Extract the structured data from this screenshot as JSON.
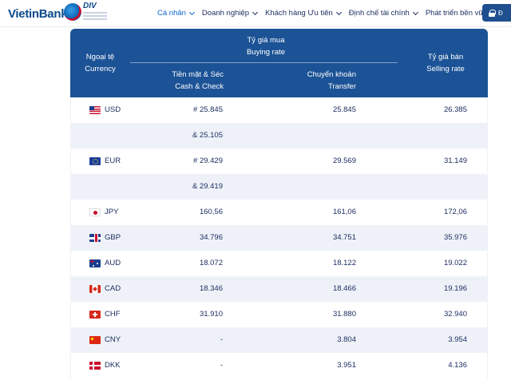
{
  "header": {
    "logo_text": "VietinBank",
    "badge_text": "DIV",
    "nav": [
      {
        "label": "Cá nhân",
        "active": true
      },
      {
        "label": "Doanh nghiệp",
        "active": false
      },
      {
        "label": "Khách hàng Ưu tiên",
        "active": false
      },
      {
        "label": "Định chế tài chính",
        "active": false
      },
      {
        "label": "Phát triển bền vững",
        "active": false
      }
    ],
    "login_label": "Đ"
  },
  "table": {
    "headers": {
      "currency_vi": "Ngoại tệ",
      "currency_en": "Currency",
      "buying_vi": "Tỷ giá mua",
      "buying_en": "Buying rate",
      "cash_vi": "Tiền mặt & Séc",
      "cash_en": "Cash & Check",
      "transfer_vi": "Chuyển khoản",
      "transfer_en": "Transfer",
      "selling_vi": "Tỷ giá bán",
      "selling_en": "Selling rate"
    },
    "rows": [
      {
        "flag": "flag-us",
        "code": "USD",
        "cash": "# 25.845",
        "transfer": "25.845",
        "selling": "26.385"
      },
      {
        "flag": "",
        "code": "",
        "cash": "& 25.105",
        "transfer": "",
        "selling": ""
      },
      {
        "flag": "flag-eu",
        "code": "EUR",
        "cash": "# 29.429",
        "transfer": "29.569",
        "selling": "31.149"
      },
      {
        "flag": "",
        "code": "",
        "cash": "& 29.419",
        "transfer": "",
        "selling": ""
      },
      {
        "flag": "flag-jp",
        "code": "JPY",
        "cash": "160,56",
        "transfer": "161,06",
        "selling": "172,06"
      },
      {
        "flag": "flag-gb",
        "code": "GBP",
        "cash": "34.796",
        "transfer": "34.751",
        "selling": "35.976"
      },
      {
        "flag": "flag-au",
        "code": "AUD",
        "cash": "18.072",
        "transfer": "18.122",
        "selling": "19.022"
      },
      {
        "flag": "flag-ca",
        "code": "CAD",
        "cash": "18.346",
        "transfer": "18.466",
        "selling": "19.196"
      },
      {
        "flag": "flag-ch",
        "code": "CHF",
        "cash": "31.910",
        "transfer": "31.880",
        "selling": "32.940"
      },
      {
        "flag": "flag-cn",
        "code": "CNY",
        "cash": "-",
        "transfer": "3.804",
        "selling": "3.954"
      },
      {
        "flag": "flag-dk",
        "code": "DKK",
        "cash": "-",
        "transfer": "3.951",
        "selling": "4.136"
      }
    ]
  }
}
